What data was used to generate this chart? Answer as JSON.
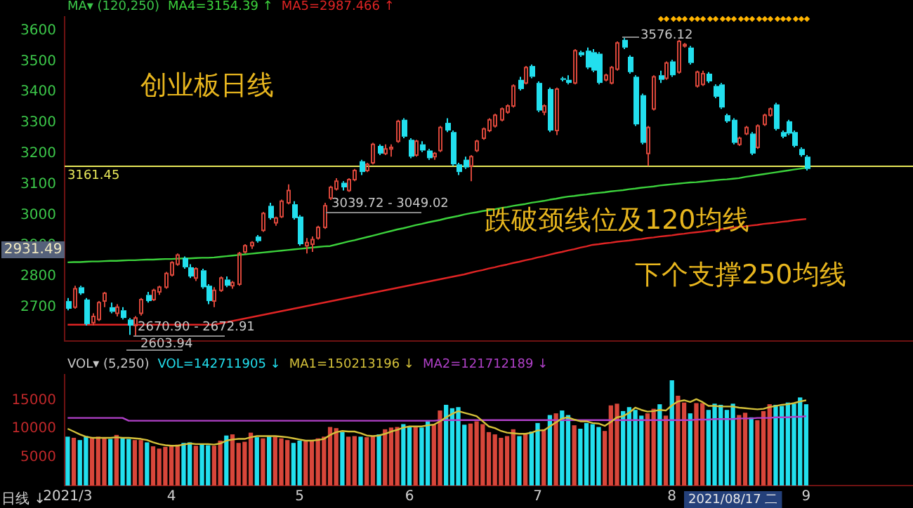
{
  "chart_data": [
    {
      "type": "candlestick",
      "legend": "top left",
      "legend_title": "MA▾ (120,250)",
      "tick_labels": "y",
      "ylim": [
        2590,
        3645
      ],
      "yticks": [
        2700,
        2800,
        2900,
        3000,
        3100,
        3200,
        3300,
        3400,
        3500,
        3600
      ],
      "categories": [
        "2021/3",
        null,
        null,
        null,
        null,
        null,
        null,
        null,
        null,
        null,
        null,
        null,
        null,
        null,
        null,
        null,
        null,
        "4",
        null,
        null,
        null,
        null,
        null,
        null,
        null,
        null,
        null,
        null,
        null,
        null,
        null,
        null,
        null,
        null,
        null,
        null,
        null,
        null,
        "5",
        null,
        null,
        null,
        null,
        null,
        null,
        null,
        null,
        null,
        null,
        null,
        null,
        null,
        null,
        null,
        null,
        null,
        "6",
        null,
        null,
        null,
        null,
        null,
        null,
        null,
        null,
        null,
        null,
        null,
        null,
        null,
        null,
        null,
        null,
        null,
        null,
        null,
        null,
        "7",
        null,
        null,
        null,
        null,
        null,
        null,
        null,
        null,
        null,
        null,
        null,
        null,
        null,
        null,
        null,
        null,
        null,
        null,
        null,
        null,
        null,
        "8",
        null,
        null,
        null,
        null,
        null,
        null,
        null,
        null,
        null,
        null,
        null,
        null,
        null,
        null,
        null,
        null,
        null,
        null,
        null,
        null,
        null,
        "9",
        null,
        null,
        null,
        null,
        null,
        null,
        null,
        null,
        null,
        null,
        null,
        null,
        null,
        null,
        null,
        null,
        null
      ],
      "ohlc": [
        [
          2720,
          2730,
          2690,
          2695
        ],
        [
          2700,
          2770,
          2695,
          2760
        ],
        [
          2765,
          2770,
          2740,
          2745
        ],
        [
          2725,
          2730,
          2640,
          2645
        ],
        [
          2650,
          2680,
          2640,
          2670
        ],
        [
          2660,
          2720,
          2655,
          2715
        ],
        [
          2720,
          2750,
          2700,
          2745
        ],
        [
          2700,
          2715,
          2680,
          2685
        ],
        [
          2680,
          2710,
          2670,
          2700
        ],
        [
          2690,
          2700,
          2660,
          2665
        ],
        [
          2660,
          2665,
          2610,
          2640
        ],
        [
          2640,
          2670.9,
          2603.94,
          2665
        ],
        [
          2680,
          2730,
          2672.91,
          2725
        ],
        [
          2740,
          2750,
          2715,
          2720
        ],
        [
          2725,
          2760,
          2720,
          2755
        ],
        [
          2750,
          2770,
          2740,
          2765
        ],
        [
          2765,
          2815,
          2760,
          2810
        ],
        [
          2805,
          2850,
          2800,
          2845
        ],
        [
          2840,
          2875,
          2835,
          2870
        ],
        [
          2860,
          2865,
          2825,
          2830
        ],
        [
          2830,
          2840,
          2795,
          2800
        ],
        [
          2795,
          2830,
          2785,
          2825
        ],
        [
          2820,
          2825,
          2760,
          2765
        ],
        [
          2770,
          2775,
          2710,
          2720
        ],
        [
          2720,
          2765,
          2700,
          2755
        ],
        [
          2755,
          2800,
          2750,
          2795
        ],
        [
          2790,
          2800,
          2765,
          2770
        ],
        [
          2770,
          2785,
          2760,
          2780
        ],
        [
          2775,
          2880,
          2770,
          2875
        ],
        [
          2880,
          2905,
          2875,
          2900
        ],
        [
          2900,
          2915,
          2890,
          2910
        ],
        [
          2930,
          2935,
          2910,
          2915
        ],
        [
          2950,
          3010,
          2945,
          3005
        ],
        [
          3030,
          3040,
          2985,
          2990
        ],
        [
          2975,
          2995,
          2965,
          2990
        ],
        [
          2995,
          3050,
          2990,
          3045
        ],
        [
          3040,
          3100,
          3035,
          3080
        ],
        [
          3035,
          3045,
          2985,
          2990
        ],
        [
          2995,
          3000,
          2900,
          2905
        ],
        [
          2900,
          2925,
          2875,
          2910
        ],
        [
          2905,
          2930,
          2880,
          2920
        ],
        [
          2925,
          2965,
          2920,
          2960
        ],
        [
          2960,
          3039.72,
          2955,
          3030
        ],
        [
          3055,
          3095,
          3049.02,
          3090
        ],
        [
          3085,
          3120,
          3080,
          3110
        ],
        [
          3105,
          3110,
          3080,
          3090
        ],
        [
          3080,
          3120,
          3075,
          3115
        ],
        [
          3115,
          3150,
          3110,
          3145
        ],
        [
          3175,
          3180,
          3130,
          3140
        ],
        [
          3145,
          3170,
          3140,
          3165
        ],
        [
          3170,
          3235,
          3165,
          3230
        ],
        [
          3225,
          3230,
          3195,
          3200
        ],
        [
          3200,
          3230,
          3195,
          3215
        ],
        [
          3215,
          3230,
          3190,
          3220
        ],
        [
          3240,
          3310,
          3235,
          3305
        ],
        [
          3310,
          3315,
          3250,
          3255
        ],
        [
          3245,
          3250,
          3185,
          3190
        ],
        [
          3195,
          3245,
          3190,
          3240
        ],
        [
          3230,
          3240,
          3205,
          3210
        ],
        [
          3210,
          3215,
          3180,
          3185
        ],
        [
          3190,
          3205,
          3180,
          3200
        ],
        [
          3210,
          3290,
          3205,
          3285
        ],
        [
          3300,
          3315,
          3270,
          3275
        ],
        [
          3270,
          3275,
          3160,
          3165
        ],
        [
          3165,
          3170,
          3130,
          3140
        ],
        [
          3180,
          3190,
          3150,
          3155
        ],
        [
          3160,
          3195,
          3110,
          3190
        ],
        [
          3210,
          3245,
          3205,
          3240
        ],
        [
          3250,
          3285,
          3245,
          3280
        ],
        [
          3275,
          3315,
          3270,
          3310
        ],
        [
          3290,
          3330,
          3285,
          3325
        ],
        [
          3310,
          3350,
          3305,
          3345
        ],
        [
          3335,
          3360,
          3330,
          3355
        ],
        [
          3355,
          3425,
          3350,
          3420
        ],
        [
          3440,
          3450,
          3405,
          3410
        ],
        [
          3430,
          3485,
          3425,
          3480
        ],
        [
          3485,
          3490,
          3445,
          3450
        ],
        [
          3430,
          3435,
          3335,
          3340
        ],
        [
          3335,
          3360,
          3325,
          3355
        ],
        [
          3410,
          3415,
          3270,
          3275
        ],
        [
          3275,
          3415,
          3260,
          3410
        ],
        [
          3445,
          3450,
          3435,
          3440
        ],
        [
          3440,
          3455,
          3425,
          3430
        ],
        [
          3430,
          3540,
          3425,
          3535
        ],
        [
          3530,
          3535,
          3515,
          3520
        ],
        [
          3535,
          3545,
          3475,
          3480
        ],
        [
          3530,
          3540,
          3465,
          3470
        ],
        [
          3525,
          3530,
          3425,
          3430
        ],
        [
          3440,
          3460,
          3435,
          3455
        ],
        [
          3430,
          3485,
          3425,
          3480
        ],
        [
          3475,
          3565,
          3470,
          3560
        ],
        [
          3570,
          3576.12,
          3540,
          3545
        ],
        [
          3515,
          3520,
          3460,
          3465
        ],
        [
          3450,
          3455,
          3290,
          3295
        ],
        [
          3390,
          3395,
          3230,
          3235
        ],
        [
          3200,
          3290,
          3160,
          3285
        ],
        [
          3345,
          3455,
          3340,
          3450
        ],
        [
          3455,
          3470,
          3430,
          3440
        ],
        [
          3445,
          3500,
          3440,
          3495
        ],
        [
          3500,
          3505,
          3450,
          3455
        ],
        [
          3465,
          3570,
          3460,
          3565
        ],
        [
          3550,
          3560,
          3545,
          3555
        ],
        [
          3545,
          3550,
          3490,
          3495
        ],
        [
          3420,
          3470,
          3415,
          3465
        ],
        [
          3425,
          3470,
          3420,
          3460
        ],
        [
          3460,
          3465,
          3430,
          3435
        ],
        [
          3420,
          3425,
          3380,
          3385
        ],
        [
          3425,
          3430,
          3345,
          3350
        ],
        [
          3325,
          3330,
          3300,
          3305
        ],
        [
          3310,
          3315,
          3230,
          3235
        ],
        [
          3230,
          3255,
          3225,
          3250
        ],
        [
          3265,
          3290,
          3260,
          3285
        ],
        [
          3265,
          3270,
          3195,
          3200
        ],
        [
          3220,
          3295,
          3215,
          3290
        ],
        [
          3295,
          3330,
          3290,
          3325
        ],
        [
          3325,
          3350,
          3320,
          3345
        ],
        [
          3360,
          3365,
          3275,
          3280
        ],
        [
          3270,
          3275,
          3250,
          3255
        ],
        [
          3305,
          3310,
          3260,
          3265
        ],
        [
          3270,
          3275,
          3220,
          3225
        ],
        [
          3215,
          3220,
          3190,
          3195
        ],
        [
          3190,
          3195,
          3145,
          3150
        ],
        null,
        null,
        null,
        null,
        null,
        null,
        null,
        null,
        null,
        null,
        null,
        null,
        null,
        null,
        null,
        null,
        null
      ],
      "colors": [
        "#22dfee",
        "#d8463a",
        "#22dfee",
        "#22dfee",
        "#d8463a",
        "#d8463a",
        "#d8463a",
        "#22dfee",
        "#d8463a",
        "#22dfee",
        "#22dfee",
        "#d8463a",
        "#d8463a",
        "#22dfee",
        "#d8463a",
        "#d8463a",
        "#d8463a",
        "#d8463a",
        "#d8463a",
        "#22dfee",
        "#22dfee",
        "#d8463a",
        "#22dfee",
        "#22dfee",
        "#d8463a",
        "#d8463a",
        "#22dfee",
        "#d8463a",
        "#d8463a",
        "#d8463a",
        "#d8463a",
        "#22dfee",
        "#d8463a",
        "#22dfee",
        "#d8463a",
        "#d8463a",
        "#d8463a",
        "#22dfee",
        "#22dfee",
        "#d8463a",
        "#d8463a",
        "#d8463a",
        "#d8463a",
        "#d8463a",
        "#d8463a",
        "#22dfee",
        "#d8463a",
        "#d8463a",
        "#22dfee",
        "#d8463a",
        "#d8463a",
        "#22dfee",
        "#d8463a",
        "#d8463a",
        "#d8463a",
        "#22dfee",
        "#22dfee",
        "#d8463a",
        "#22dfee",
        "#22dfee",
        "#d8463a",
        "#d8463a",
        "#22dfee",
        "#22dfee",
        "#22dfee",
        "#22dfee",
        "#d8463a",
        "#d8463a",
        "#d8463a",
        "#d8463a",
        "#d8463a",
        "#d8463a",
        "#d8463a",
        "#d8463a",
        "#22dfee",
        "#d8463a",
        "#22dfee",
        "#22dfee",
        "#d8463a",
        "#22dfee",
        "#d8463a",
        "#22dfee",
        "#22dfee",
        "#d8463a",
        "#22dfee",
        "#22dfee",
        "#22dfee",
        "#22dfee",
        "#d8463a",
        "#d8463a",
        "#d8463a",
        "#22dfee",
        "#22dfee",
        "#22dfee",
        "#22dfee",
        "#d8463a",
        "#d8463a",
        "#22dfee",
        "#d8463a",
        "#22dfee",
        "#d8463a",
        "#d8463a",
        "#22dfee",
        "#d8463a",
        "#d8463a",
        "#22dfee",
        "#22dfee",
        "#22dfee",
        "#22dfee",
        "#22dfee",
        "#d8463a",
        "#d8463a",
        "#22dfee",
        "#d8463a",
        "#d8463a",
        "#d8463a",
        "#22dfee",
        "#22dfee",
        "#22dfee",
        "#22dfee",
        "#22dfee",
        "#22dfee",
        null,
        null,
        null,
        null,
        null,
        null,
        null,
        null,
        null,
        null,
        null,
        null,
        null,
        null,
        null,
        null,
        null
      ],
      "series": [
        {
          "name": "MA4=3154.39 ↑",
          "type": "line",
          "color": "#3cd23c",
          "values": [
            2846,
            2847,
            2847,
            2848,
            2849,
            2849,
            2850,
            2851,
            2851,
            2852,
            2853,
            2853,
            2854,
            2855,
            2855,
            2856,
            2857,
            2857,
            2858,
            2859,
            2859,
            2860,
            2861,
            2861,
            2862,
            2864,
            2866,
            2868,
            2870,
            2872,
            2874,
            2876,
            2878,
            2880,
            2882,
            2884,
            2886,
            2888,
            2890,
            2892,
            2894,
            2896,
            2898,
            2899,
            2904,
            2909,
            2914,
            2918,
            2923,
            2928,
            2933,
            2938,
            2943,
            2948,
            2953,
            2957,
            2962,
            2967,
            2971,
            2976,
            2980,
            2984,
            2989,
            2993,
            2997,
            3002,
            3006,
            3009,
            3013,
            3016,
            3019,
            3023,
            3026,
            3030,
            3033,
            3036,
            3040,
            3043,
            3046,
            3050,
            3053,
            3057,
            3060,
            3062,
            3065,
            3067,
            3070,
            3072,
            3074,
            3077,
            3079,
            3081,
            3084,
            3086,
            3089,
            3091,
            3093,
            3096,
            3098,
            3100,
            3102,
            3104,
            3106,
            3107,
            3109,
            3111,
            3113,
            3115,
            3116,
            3118,
            3120,
            3124,
            3127,
            3130,
            3133,
            3136,
            3139,
            3142,
            3145,
            3148,
            3151,
            3154,
            null,
            null,
            null,
            null,
            null,
            null,
            null,
            null,
            null,
            null,
            null,
            null,
            null,
            null,
            null,
            null,
            null
          ]
        },
        {
          "name": "MA5=2987.466 ↑",
          "type": "line",
          "color": "#e02424",
          "values": [
            2643,
            2643,
            2643,
            2643,
            2643,
            2643,
            2643,
            2643,
            2643,
            2643,
            2643,
            2643,
            2643,
            2643,
            2643,
            2643,
            2643,
            2643,
            2643,
            2643,
            2643,
            2643,
            2643,
            2643,
            2643,
            2647,
            2651,
            2655,
            2659,
            2663,
            2667,
            2671,
            2675,
            2679,
            2683,
            2687,
            2691,
            2695,
            2699,
            2703,
            2707,
            2711,
            2715,
            2719,
            2723,
            2727,
            2731,
            2735,
            2739,
            2743,
            2747,
            2751,
            2755,
            2759,
            2763,
            2767,
            2771,
            2775,
            2779,
            2783,
            2787,
            2791,
            2795,
            2799,
            2803,
            2807,
            2812,
            2817,
            2821,
            2826,
            2830,
            2835,
            2839,
            2844,
            2848,
            2853,
            2857,
            2862,
            2866,
            2871,
            2876,
            2880,
            2885,
            2889,
            2894,
            2898,
            2903,
            2905,
            2908,
            2910,
            2913,
            2915,
            2917,
            2920,
            2922,
            2925,
            2927,
            2930,
            2932,
            2934,
            2937,
            2939,
            2942,
            2944,
            2946,
            2949,
            2951,
            2954,
            2956,
            2959,
            2961,
            2963,
            2966,
            2968,
            2971,
            2973,
            2975,
            2978,
            2980,
            2983,
            2985,
            2987,
            null,
            null,
            null,
            null,
            null,
            null,
            null,
            null,
            null,
            null,
            null,
            null,
            null,
            null,
            null,
            null,
            null
          ]
        }
      ],
      "ref_lines": [
        {
          "axis": "y",
          "value": 3161.45,
          "label": "3161.45",
          "color": "#e8e85a"
        }
      ],
      "annotations": [
        "创业板日线",
        "跌破颈线位及120均线",
        "下个支撑250均线",
        "2931.49",
        "3576.12",
        "3039.72 - 3049.02",
        "2670.90 - 2672.91",
        "2603.94"
      ]
    },
    {
      "type": "bar",
      "legend": "top left",
      "legend_title": "VOL▾ (5,250)",
      "ylim": [
        0,
        19500
      ],
      "yticks": [
        5000,
        10000,
        15000
      ],
      "categories": [
        "2021/3",
        null,
        null,
        null,
        null,
        null,
        null,
        null,
        null,
        null,
        null,
        null,
        null,
        null,
        null,
        null,
        null,
        "4",
        null,
        null,
        null,
        null,
        null,
        null,
        null,
        null,
        null,
        null,
        null,
        null,
        null,
        null,
        null,
        null,
        null,
        null,
        null,
        null,
        "5",
        null,
        null,
        null,
        null,
        null,
        null,
        null,
        null,
        null,
        null,
        null,
        null,
        null,
        null,
        null,
        null,
        null,
        "6",
        null,
        null,
        null,
        null,
        null,
        null,
        null,
        null,
        null,
        null,
        null,
        null,
        null,
        null,
        null,
        null,
        null,
        null,
        null,
        null,
        "7",
        null,
        null,
        null,
        null,
        null,
        null,
        null,
        null,
        null,
        null,
        null,
        null,
        null,
        null,
        null,
        null,
        null,
        null,
        null,
        null,
        null,
        "8",
        null,
        null,
        null,
        null,
        null,
        null,
        null,
        null,
        null,
        null,
        null,
        null,
        null,
        null,
        null,
        null,
        null,
        null,
        null,
        null,
        null,
        "9",
        null,
        null,
        null,
        null,
        null,
        null,
        null,
        null,
        null,
        null,
        null,
        null,
        null,
        null,
        null,
        null,
        null
      ],
      "series": [
        {
          "name": "VOL=142711905 ↓",
          "values": [
            8600,
            8400,
            8000,
            8700,
            8500,
            8600,
            8300,
            8200,
            8900,
            8300,
            8200,
            8000,
            8000,
            7600,
            6900,
            6500,
            6800,
            7000,
            7200,
            7500,
            7600,
            7000,
            7400,
            7100,
            7000,
            7900,
            8800,
            9000,
            7500,
            7700,
            9300,
            8500,
            8300,
            8700,
            8600,
            8300,
            8000,
            7500,
            7900,
            7800,
            8000,
            8300,
            8600,
            10300,
            10100,
            9400,
            8600,
            8700,
            8600,
            8500,
            8700,
            9000,
            9900,
            10200,
            10300,
            10800,
            10400,
            10300,
            10200,
            11300,
            10700,
            13200,
            14200,
            13600,
            13800,
            10700,
            10900,
            11300,
            10800,
            9400,
            9000,
            8400,
            8700,
            9900,
            8700,
            9200,
            9500,
            11000,
            9900,
            12400,
            12700,
            13200,
            12400,
            10600,
            10000,
            11000,
            10800,
            10300,
            9600,
            14100,
            14400,
            13100,
            13800,
            13300,
            12300,
            12700,
            13500,
            14300,
            12300,
            18500,
            15800,
            14600,
            12700,
            14500,
            14500,
            13300,
            14400,
            14200,
            13300,
            14400,
            12400,
            12800,
            12000,
            11500,
            13100,
            14300,
            14200,
            14000,
            14600,
            14400,
            15500,
            14300,
            null,
            null,
            null,
            null,
            null,
            null,
            null,
            null,
            null,
            null,
            null,
            null,
            null,
            null,
            null,
            null,
            null
          ],
          "colors": [
            "#22dfee",
            "#d8463a",
            "#22dfee",
            "#22dfee",
            "#d8463a",
            "#d8463a",
            "#d8463a",
            "#22dfee",
            "#d8463a",
            "#22dfee",
            "#22dfee",
            "#d8463a",
            "#d8463a",
            "#22dfee",
            "#d8463a",
            "#d8463a",
            "#d8463a",
            "#d8463a",
            "#d8463a",
            "#22dfee",
            "#22dfee",
            "#d8463a",
            "#22dfee",
            "#22dfee",
            "#d8463a",
            "#d8463a",
            "#22dfee",
            "#d8463a",
            "#d8463a",
            "#d8463a",
            "#d8463a",
            "#22dfee",
            "#d8463a",
            "#22dfee",
            "#d8463a",
            "#d8463a",
            "#d8463a",
            "#22dfee",
            "#22dfee",
            "#d8463a",
            "#d8463a",
            "#d8463a",
            "#d8463a",
            "#d8463a",
            "#d8463a",
            "#22dfee",
            "#d8463a",
            "#d8463a",
            "#22dfee",
            "#d8463a",
            "#d8463a",
            "#22dfee",
            "#d8463a",
            "#d8463a",
            "#d8463a",
            "#22dfee",
            "#22dfee",
            "#d8463a",
            "#22dfee",
            "#22dfee",
            "#d8463a",
            "#d8463a",
            "#22dfee",
            "#22dfee",
            "#22dfee",
            "#22dfee",
            "#d8463a",
            "#d8463a",
            "#d8463a",
            "#d8463a",
            "#d8463a",
            "#d8463a",
            "#d8463a",
            "#d8463a",
            "#22dfee",
            "#d8463a",
            "#22dfee",
            "#22dfee",
            "#d8463a",
            "#22dfee",
            "#d8463a",
            "#22dfee",
            "#22dfee",
            "#d8463a",
            "#22dfee",
            "#22dfee",
            "#22dfee",
            "#22dfee",
            "#d8463a",
            "#d8463a",
            "#d8463a",
            "#22dfee",
            "#22dfee",
            "#22dfee",
            "#22dfee",
            "#d8463a",
            "#d8463a",
            "#22dfee",
            "#d8463a",
            "#22dfee",
            "#d8463a",
            "#d8463a",
            "#22dfee",
            "#d8463a",
            "#d8463a",
            "#22dfee",
            "#22dfee",
            "#22dfee",
            "#22dfee",
            "#22dfee",
            "#d8463a",
            "#d8463a",
            "#22dfee",
            "#d8463a",
            "#d8463a",
            "#d8463a",
            "#22dfee",
            "#22dfee",
            "#22dfee",
            "#22dfee",
            "#22dfee",
            "#22dfee",
            null,
            null,
            null,
            null,
            null,
            null,
            null,
            null,
            null,
            null,
            null,
            null,
            null,
            null,
            null,
            null,
            null
          ]
        },
        {
          "name": "MA1=150213196 ↓",
          "type": "line",
          "color": "#d4c03a",
          "values": [
            10000,
            9500,
            9000,
            8600,
            8400,
            8400,
            8400,
            8400,
            8500,
            8400,
            8400,
            8300,
            8200,
            8000,
            7600,
            7300,
            7100,
            7000,
            7000,
            7200,
            7400,
            7300,
            7300,
            7300,
            7200,
            7400,
            7900,
            8100,
            8200,
            8200,
            8500,
            8700,
            8700,
            8700,
            8700,
            8600,
            8500,
            8300,
            8100,
            7900,
            7900,
            8000,
            8200,
            8900,
            9400,
            9600,
            9500,
            9500,
            9200,
            8800,
            8700,
            8800,
            9100,
            9500,
            9800,
            10200,
            10400,
            10400,
            10400,
            10600,
            10700,
            11300,
            12000,
            12600,
            13100,
            12800,
            12500,
            12200,
            11300,
            10400,
            10100,
            9600,
            9300,
            9200,
            9100,
            9100,
            9300,
            9700,
            9700,
            10400,
            11100,
            11800,
            12000,
            11600,
            11300,
            11300,
            11000,
            10900,
            10500,
            11200,
            12000,
            12200,
            12800,
            13700,
            13300,
            13000,
            13100,
            13300,
            13200,
            14100,
            14800,
            15000,
            14700,
            15200,
            14700,
            14000,
            14000,
            13900,
            13900,
            13900,
            13700,
            13600,
            13500,
            13400,
            13500,
            13800,
            14000,
            14200,
            14300,
            14500,
            14800,
            15000,
            null,
            null,
            null,
            null,
            null,
            null,
            null,
            null,
            null,
            null,
            null,
            null,
            null,
            null,
            null,
            null,
            null
          ]
        },
        {
          "name": "MA2=121712189 ↓",
          "type": "line",
          "color": "#b040c8",
          "values": [
            11900,
            11900,
            11900,
            11900,
            11900,
            11900,
            11900,
            11900,
            11900,
            11900,
            11400,
            11400,
            11400,
            11400,
            11400,
            11400,
            11400,
            11400,
            11400,
            11400,
            11400,
            11400,
            11400,
            11400,
            11400,
            11400,
            11400,
            11400,
            11400,
            11400,
            11400,
            11400,
            11400,
            11400,
            11400,
            11400,
            11400,
            11400,
            11400,
            11400,
            11400,
            11400,
            11400,
            11400,
            11400,
            11400,
            11400,
            11400,
            11400,
            11400,
            11400,
            11400,
            11400,
            11400,
            11400,
            11400,
            11400,
            11400,
            11400,
            11400,
            11400,
            11500,
            11500,
            11500,
            11500,
            11500,
            11500,
            11500,
            11500,
            11500,
            11500,
            11500,
            11500,
            11500,
            11500,
            11500,
            11500,
            11500,
            11500,
            11500,
            11500,
            11500,
            11500,
            11500,
            11500,
            11500,
            11500,
            11500,
            11500,
            11500,
            11500,
            11500,
            11500,
            11500,
            11500,
            11500,
            11500,
            11500,
            11500,
            11500,
            11500,
            11500,
            11500,
            11600,
            11600,
            11600,
            11700,
            11700,
            11700,
            11700,
            11800,
            11800,
            11800,
            11900,
            11900,
            11900,
            12000,
            12000,
            12000,
            12100,
            12100,
            12200,
            null,
            null,
            null,
            null,
            null,
            null,
            null,
            null,
            null,
            null,
            null,
            null,
            null,
            null,
            null,
            null,
            null
          ]
        }
      ],
      "annotations": [
        "2021/08/17 二",
        "日线 ↓"
      ]
    }
  ]
}
